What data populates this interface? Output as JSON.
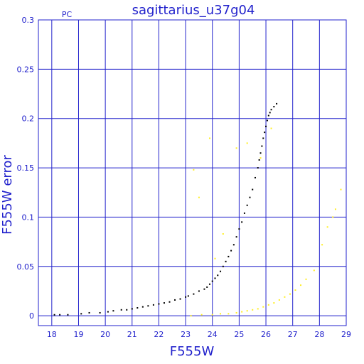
{
  "chart_data": {
    "type": "scatter",
    "title": "sagittarius_u37g04",
    "corner_label": "PC",
    "xlabel": "F555W",
    "ylabel": "F555W error",
    "xlim": [
      17.5,
      29
    ],
    "ylim": [
      -0.01,
      0.3
    ],
    "x_ticks": [
      18,
      19,
      20,
      21,
      22,
      23,
      24,
      25,
      26,
      27,
      28,
      29
    ],
    "y_ticks": [
      0,
      0.05,
      0.1,
      0.15,
      0.2,
      0.25,
      0.3
    ],
    "y_tick_labels": [
      "0",
      "0.05",
      "0.1",
      "0.15",
      "0.2",
      "0.25",
      "0.3"
    ],
    "grid": true,
    "colors": {
      "frame": "#2222cc",
      "grid": "#2222cc",
      "black_series": "#000000",
      "yellow_series": "#ffee22"
    },
    "series": [
      {
        "color": "black",
        "x": [
          18.1,
          18.3,
          18.6,
          19.1,
          19.4,
          19.8,
          20.1,
          20.3,
          20.6,
          20.8,
          21.0,
          21.2,
          21.4,
          21.6,
          21.8,
          22.0,
          22.2,
          22.4,
          22.6,
          22.8,
          23.0,
          23.1,
          23.3,
          23.5,
          23.7,
          23.8,
          23.9,
          24.0,
          24.1,
          24.2,
          24.3,
          24.4,
          24.5,
          24.6,
          24.7,
          24.8,
          24.9,
          25.0,
          25.1,
          25.2,
          25.3,
          25.4,
          25.5,
          25.6,
          25.7,
          25.75,
          25.8,
          25.85,
          25.9,
          25.95,
          26.0,
          26.05,
          26.1,
          26.15,
          26.2,
          26.3,
          26.4
        ],
        "y": [
          0.001,
          0.001,
          0.001,
          0.002,
          0.003,
          0.003,
          0.004,
          0.005,
          0.006,
          0.006,
          0.007,
          0.008,
          0.009,
          0.01,
          0.011,
          0.012,
          0.013,
          0.014,
          0.016,
          0.017,
          0.019,
          0.02,
          0.022,
          0.025,
          0.027,
          0.029,
          0.032,
          0.035,
          0.038,
          0.041,
          0.045,
          0.05,
          0.055,
          0.06,
          0.066,
          0.072,
          0.08,
          0.088,
          0.095,
          0.104,
          0.112,
          0.12,
          0.128,
          0.14,
          0.15,
          0.158,
          0.165,
          0.172,
          0.18,
          0.186,
          0.192,
          0.198,
          0.203,
          0.206,
          0.209,
          0.212,
          0.215
        ]
      },
      {
        "color": "yellow",
        "x": [
          23.2,
          23.6,
          24.0,
          24.3,
          24.6,
          24.9,
          25.1,
          25.3,
          25.5,
          25.7,
          25.9,
          26.1,
          26.3,
          26.5,
          26.7,
          26.9,
          27.1,
          27.3,
          27.5,
          27.8,
          28.1,
          28.3,
          28.5,
          28.6,
          28.8,
          24.1,
          24.4,
          23.5,
          23.3,
          25.3,
          25.8,
          26.2,
          24.9,
          23.9
        ],
        "y": [
          0.0,
          0.001,
          0.001,
          0.002,
          0.002,
          0.003,
          0.004,
          0.005,
          0.006,
          0.007,
          0.009,
          0.011,
          0.013,
          0.016,
          0.019,
          0.022,
          0.026,
          0.031,
          0.037,
          0.046,
          0.072,
          0.09,
          0.1,
          0.108,
          0.128,
          0.058,
          0.083,
          0.12,
          0.148,
          0.175,
          0.16,
          0.19,
          0.17,
          0.18
        ]
      }
    ]
  }
}
